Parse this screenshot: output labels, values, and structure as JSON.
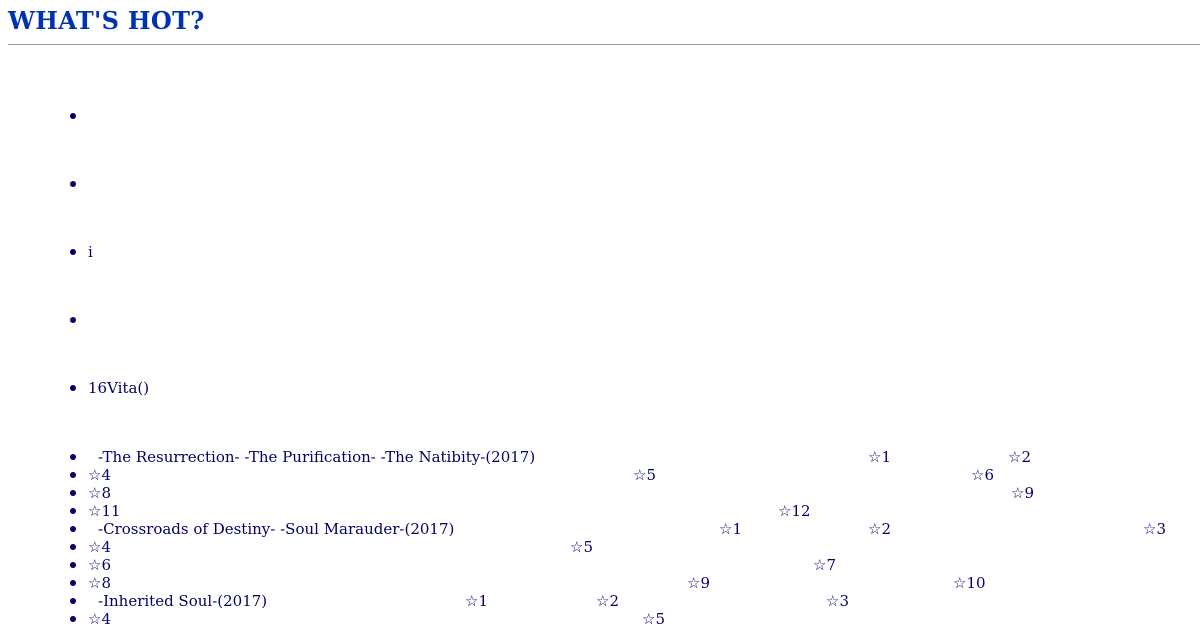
{
  "header": {
    "title": "WHAT'S HOT?"
  },
  "top_items": [
    {
      "text": ""
    },
    {
      "text": ""
    },
    {
      "text": "i"
    },
    {
      "text": ""
    },
    {
      "text": "16Vita()"
    }
  ],
  "rating_lines": [
    {
      "title": "-The Resurrection-  -The Purification-  -The Natibity-(2017)",
      "stars": [
        "☆1",
        "☆2"
      ]
    },
    {
      "title": "",
      "stars": [
        "☆4",
        "☆5",
        "☆6"
      ]
    },
    {
      "title": "",
      "stars": [
        "☆8",
        "☆9"
      ]
    },
    {
      "title": "",
      "stars": [
        "☆11",
        "☆12"
      ]
    },
    {
      "title": "-Crossroads of Destiny-  -Soul Marauder-(2017)",
      "stars": [
        "☆1",
        "☆2",
        "☆3"
      ]
    },
    {
      "title": "",
      "stars": [
        "☆4",
        "☆5"
      ]
    },
    {
      "title": "",
      "stars": [
        "☆6",
        "☆7"
      ]
    },
    {
      "title": "",
      "stars": [
        "☆8",
        "☆9",
        "☆10"
      ]
    },
    {
      "title": "-Inherited Soul-(2017)",
      "stars": [
        "☆1",
        "☆2",
        "☆3"
      ]
    },
    {
      "title": "",
      "stars": [
        "☆4",
        "☆5"
      ]
    }
  ]
}
